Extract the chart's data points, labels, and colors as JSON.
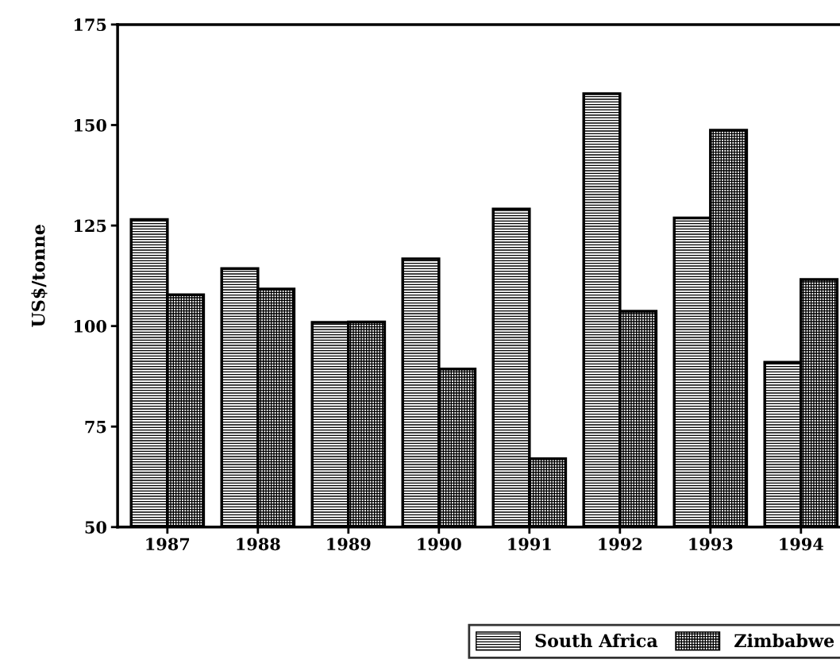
{
  "chart_data": {
    "type": "bar",
    "ylabel": "US$/tonne",
    "categories": [
      "1987",
      "1988",
      "1989",
      "1990",
      "1991",
      "1992",
      "1993",
      "1994"
    ],
    "series": [
      {
        "name": "South Africa",
        "color": "#000000",
        "values": [
          126.5,
          114.3,
          100.9,
          116.7,
          129.1,
          157.8,
          126.9,
          91
        ]
      },
      {
        "name": "Zimbabwe",
        "color": "#000000",
        "values": [
          107.8,
          109.2,
          101,
          89.3,
          67,
          103.7,
          148.7,
          111.6
        ]
      }
    ],
    "ylim": [
      50,
      175
    ],
    "yticks": [
      50,
      75,
      100,
      125,
      150,
      175
    ],
    "grid": false,
    "legend": "bottom right"
  }
}
